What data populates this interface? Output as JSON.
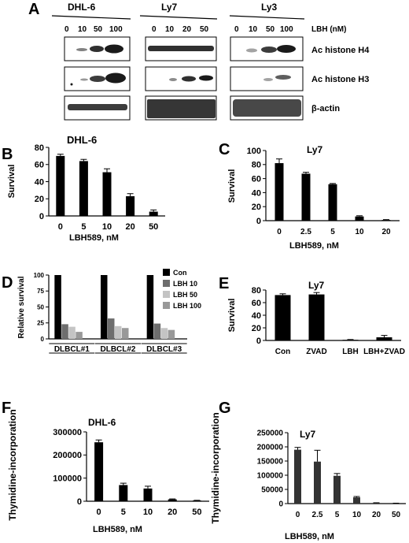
{
  "panel_a": {
    "letter": "A",
    "groups": [
      {
        "name": "DHL-6",
        "lanes": [
          "0",
          "10",
          "50",
          "100"
        ]
      },
      {
        "name": "Ly7",
        "lanes": [
          "0",
          "10",
          "20",
          "50"
        ]
      },
      {
        "name": "Ly3",
        "lanes": [
          "0",
          "10",
          "50",
          "100"
        ]
      }
    ],
    "dose_label": "LBH (nM)",
    "rows": [
      "Ac histone H4",
      "Ac histone H3",
      "β-actin"
    ],
    "blot_color": "#1a1a1a"
  },
  "chart_data": [
    {
      "id": "B",
      "letter": "B",
      "type": "bar",
      "title": "DHL-6",
      "ylabel": "Survival",
      "xlabel": "LBH589, nM",
      "categories": [
        "0",
        "5",
        "10",
        "20",
        "50"
      ],
      "values": [
        70,
        64,
        51,
        23,
        5
      ],
      "errors": [
        2,
        2,
        4,
        3,
        2
      ],
      "ylim": [
        0,
        80
      ],
      "yticks": [
        0,
        20,
        40,
        60,
        80
      ],
      "ytick_labels": [
        "0",
        "20",
        "40",
        "60",
        "80"
      ],
      "bar_color": "#000000"
    },
    {
      "id": "C",
      "letter": "C",
      "type": "bar",
      "title": "Ly7",
      "ylabel": "Survival",
      "xlabel": "LBH589, nM",
      "categories": [
        "0",
        "2.5",
        "5",
        "10",
        "20"
      ],
      "values": [
        82,
        67,
        52,
        6,
        1
      ],
      "errors": [
        6,
        2,
        1,
        1,
        0.5
      ],
      "ylim": [
        0,
        100
      ],
      "yticks": [
        0,
        20,
        40,
        60,
        80,
        100
      ],
      "ytick_labels": [
        "0",
        "20",
        "40",
        "60",
        "80",
        "100"
      ],
      "bar_color": "#000000"
    },
    {
      "id": "D",
      "letter": "D",
      "type": "bar",
      "ylabel": "Relative survival",
      "categories": [
        "DLBCL#1",
        "DLBCL#2",
        "DLBCL#3"
      ],
      "series": [
        {
          "name": "Con",
          "values": [
            100,
            100,
            100
          ],
          "color": "#000000"
        },
        {
          "name": "LBH 10",
          "values": [
            23,
            32,
            24
          ],
          "color": "#6e6e6e"
        },
        {
          "name": "LBH 50",
          "values": [
            19,
            20,
            17
          ],
          "color": "#c4c4c4"
        },
        {
          "name": "LBH 100",
          "values": [
            11,
            17,
            14
          ],
          "color": "#999999"
        }
      ],
      "ylim": [
        0,
        100
      ],
      "yticks": [
        0,
        25,
        50,
        75,
        100
      ],
      "ytick_labels": [
        "0",
        "25",
        "50",
        "75",
        "100"
      ],
      "legend": "top-right"
    },
    {
      "id": "E",
      "letter": "E",
      "type": "bar",
      "title": "Ly7",
      "ylabel": "Survival",
      "categories": [
        "Con",
        "ZVAD",
        "LBH",
        "LBH+ZVAD"
      ],
      "values": [
        72,
        73,
        1,
        5
      ],
      "errors": [
        2,
        3,
        0.5,
        3
      ],
      "ylim": [
        0,
        80
      ],
      "yticks": [
        0,
        20,
        40,
        60,
        80
      ],
      "ytick_labels": [
        "0",
        "20",
        "40",
        "60",
        "80"
      ],
      "bar_color": "#000000"
    },
    {
      "id": "F",
      "letter": "F",
      "type": "bar",
      "title": "DHL-6",
      "ylabel": "Thymidine-incorporation",
      "xlabel": "LBH589, nM",
      "categories": [
        "0",
        "5",
        "10",
        "20",
        "50"
      ],
      "values": [
        255000,
        70000,
        55000,
        8000,
        3000
      ],
      "errors": [
        10000,
        8000,
        10000,
        2000,
        1000
      ],
      "ylim": [
        0,
        300000
      ],
      "yticks": [
        0,
        100000,
        200000,
        300000
      ],
      "ytick_labels": [
        "0",
        "100000",
        "200000",
        "300000"
      ],
      "bar_color": "#000000"
    },
    {
      "id": "G",
      "letter": "G",
      "type": "bar",
      "title": "Ly7",
      "ylabel": "Thymidine-incorporation",
      "xlabel": "LBH589, nM",
      "categories": [
        "0",
        "2.5",
        "5",
        "10",
        "20",
        "50"
      ],
      "values": [
        190000,
        148000,
        98000,
        22000,
        2000,
        1000
      ],
      "errors": [
        8000,
        40000,
        8000,
        3000,
        1000,
        500
      ],
      "ylim": [
        0,
        250000
      ],
      "yticks": [
        0,
        50000,
        100000,
        150000,
        200000,
        250000
      ],
      "ytick_labels": [
        "0",
        "50000",
        "100000",
        "150000",
        "200000",
        "250000"
      ],
      "bar_color": "#333333"
    }
  ]
}
